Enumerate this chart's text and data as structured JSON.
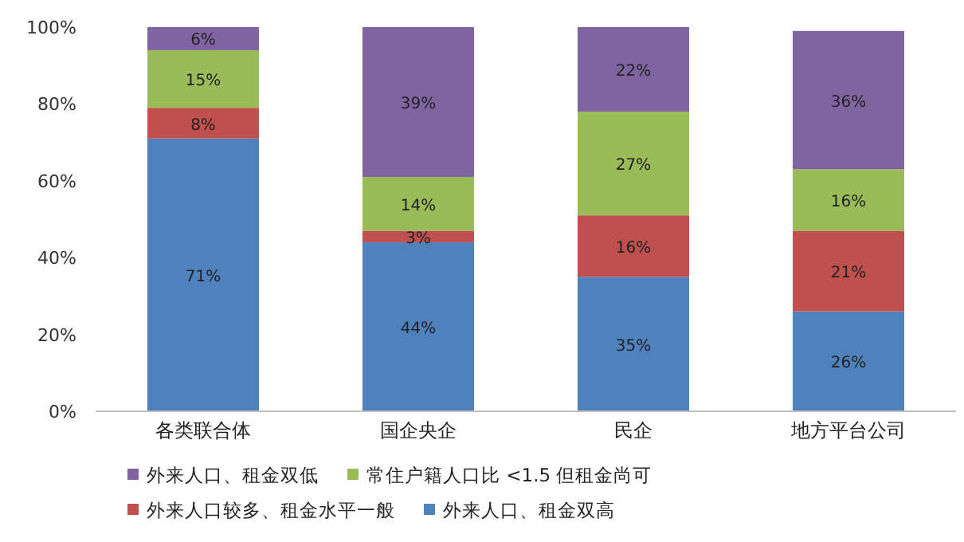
{
  "chart_data": {
    "type": "bar",
    "stacked": true,
    "categories": [
      "各类联合体",
      "国企央企",
      "民企",
      "地方平台公司"
    ],
    "series": [
      {
        "name": "外来人口、租金双高",
        "color": "#4f81bd",
        "values": [
          71,
          44,
          35,
          26
        ],
        "value_labels": [
          "71%",
          "44%",
          "35%",
          "26%"
        ]
      },
      {
        "name": "外来人口较多、租金水平一般",
        "color": "#c0504d",
        "values": [
          8,
          3,
          16,
          21
        ],
        "value_labels": [
          "8%",
          "3%",
          "16%",
          "21%"
        ]
      },
      {
        "name": "常住户籍人口比 <1.5 但租金尚可",
        "color": "#9bbb59",
        "values": [
          15,
          14,
          27,
          16
        ],
        "value_labels": [
          "15%",
          "14%",
          "27%",
          "16%"
        ]
      },
      {
        "name": "外来人口、租金双低",
        "color": "#8064a2",
        "values": [
          6,
          39,
          22,
          36
        ],
        "value_labels": [
          "6%",
          "39%",
          "22%",
          "36%"
        ]
      }
    ],
    "ylim": [
      0,
      100
    ],
    "yticks": [
      {
        "value": 0,
        "label": "0%"
      },
      {
        "value": 20,
        "label": "20%"
      },
      {
        "value": 40,
        "label": "40%"
      },
      {
        "value": 60,
        "label": "60%"
      },
      {
        "value": 80,
        "label": "80%"
      },
      {
        "value": 100,
        "label": "100%"
      }
    ],
    "legend": "bottom"
  }
}
